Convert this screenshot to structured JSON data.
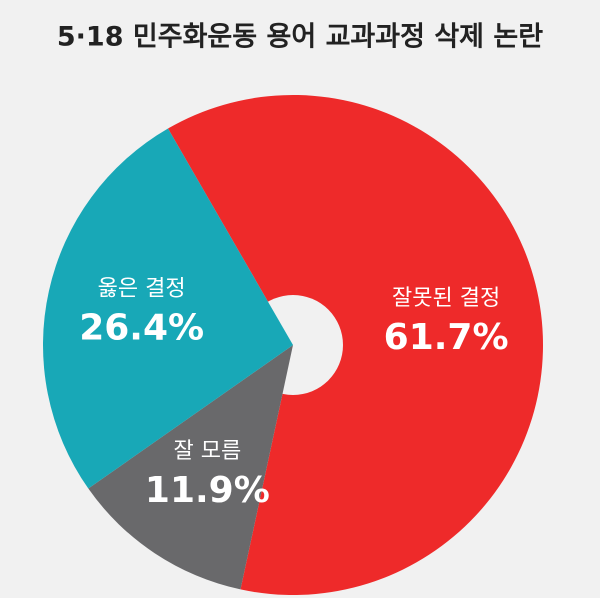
{
  "chart_data": {
    "type": "pie",
    "title": "5·18 민주화운동 용어 교과과정 삭제 논란",
    "categories": [
      "잘못된 결정",
      "잘 모름",
      "옳은 결정"
    ],
    "values": [
      61.7,
      11.9,
      26.4
    ],
    "value_labels": [
      "61.7%",
      "11.9%",
      "26.4%"
    ],
    "colors": [
      "#ee2a2a",
      "#69696b",
      "#18a8b7"
    ],
    "donut": true
  }
}
